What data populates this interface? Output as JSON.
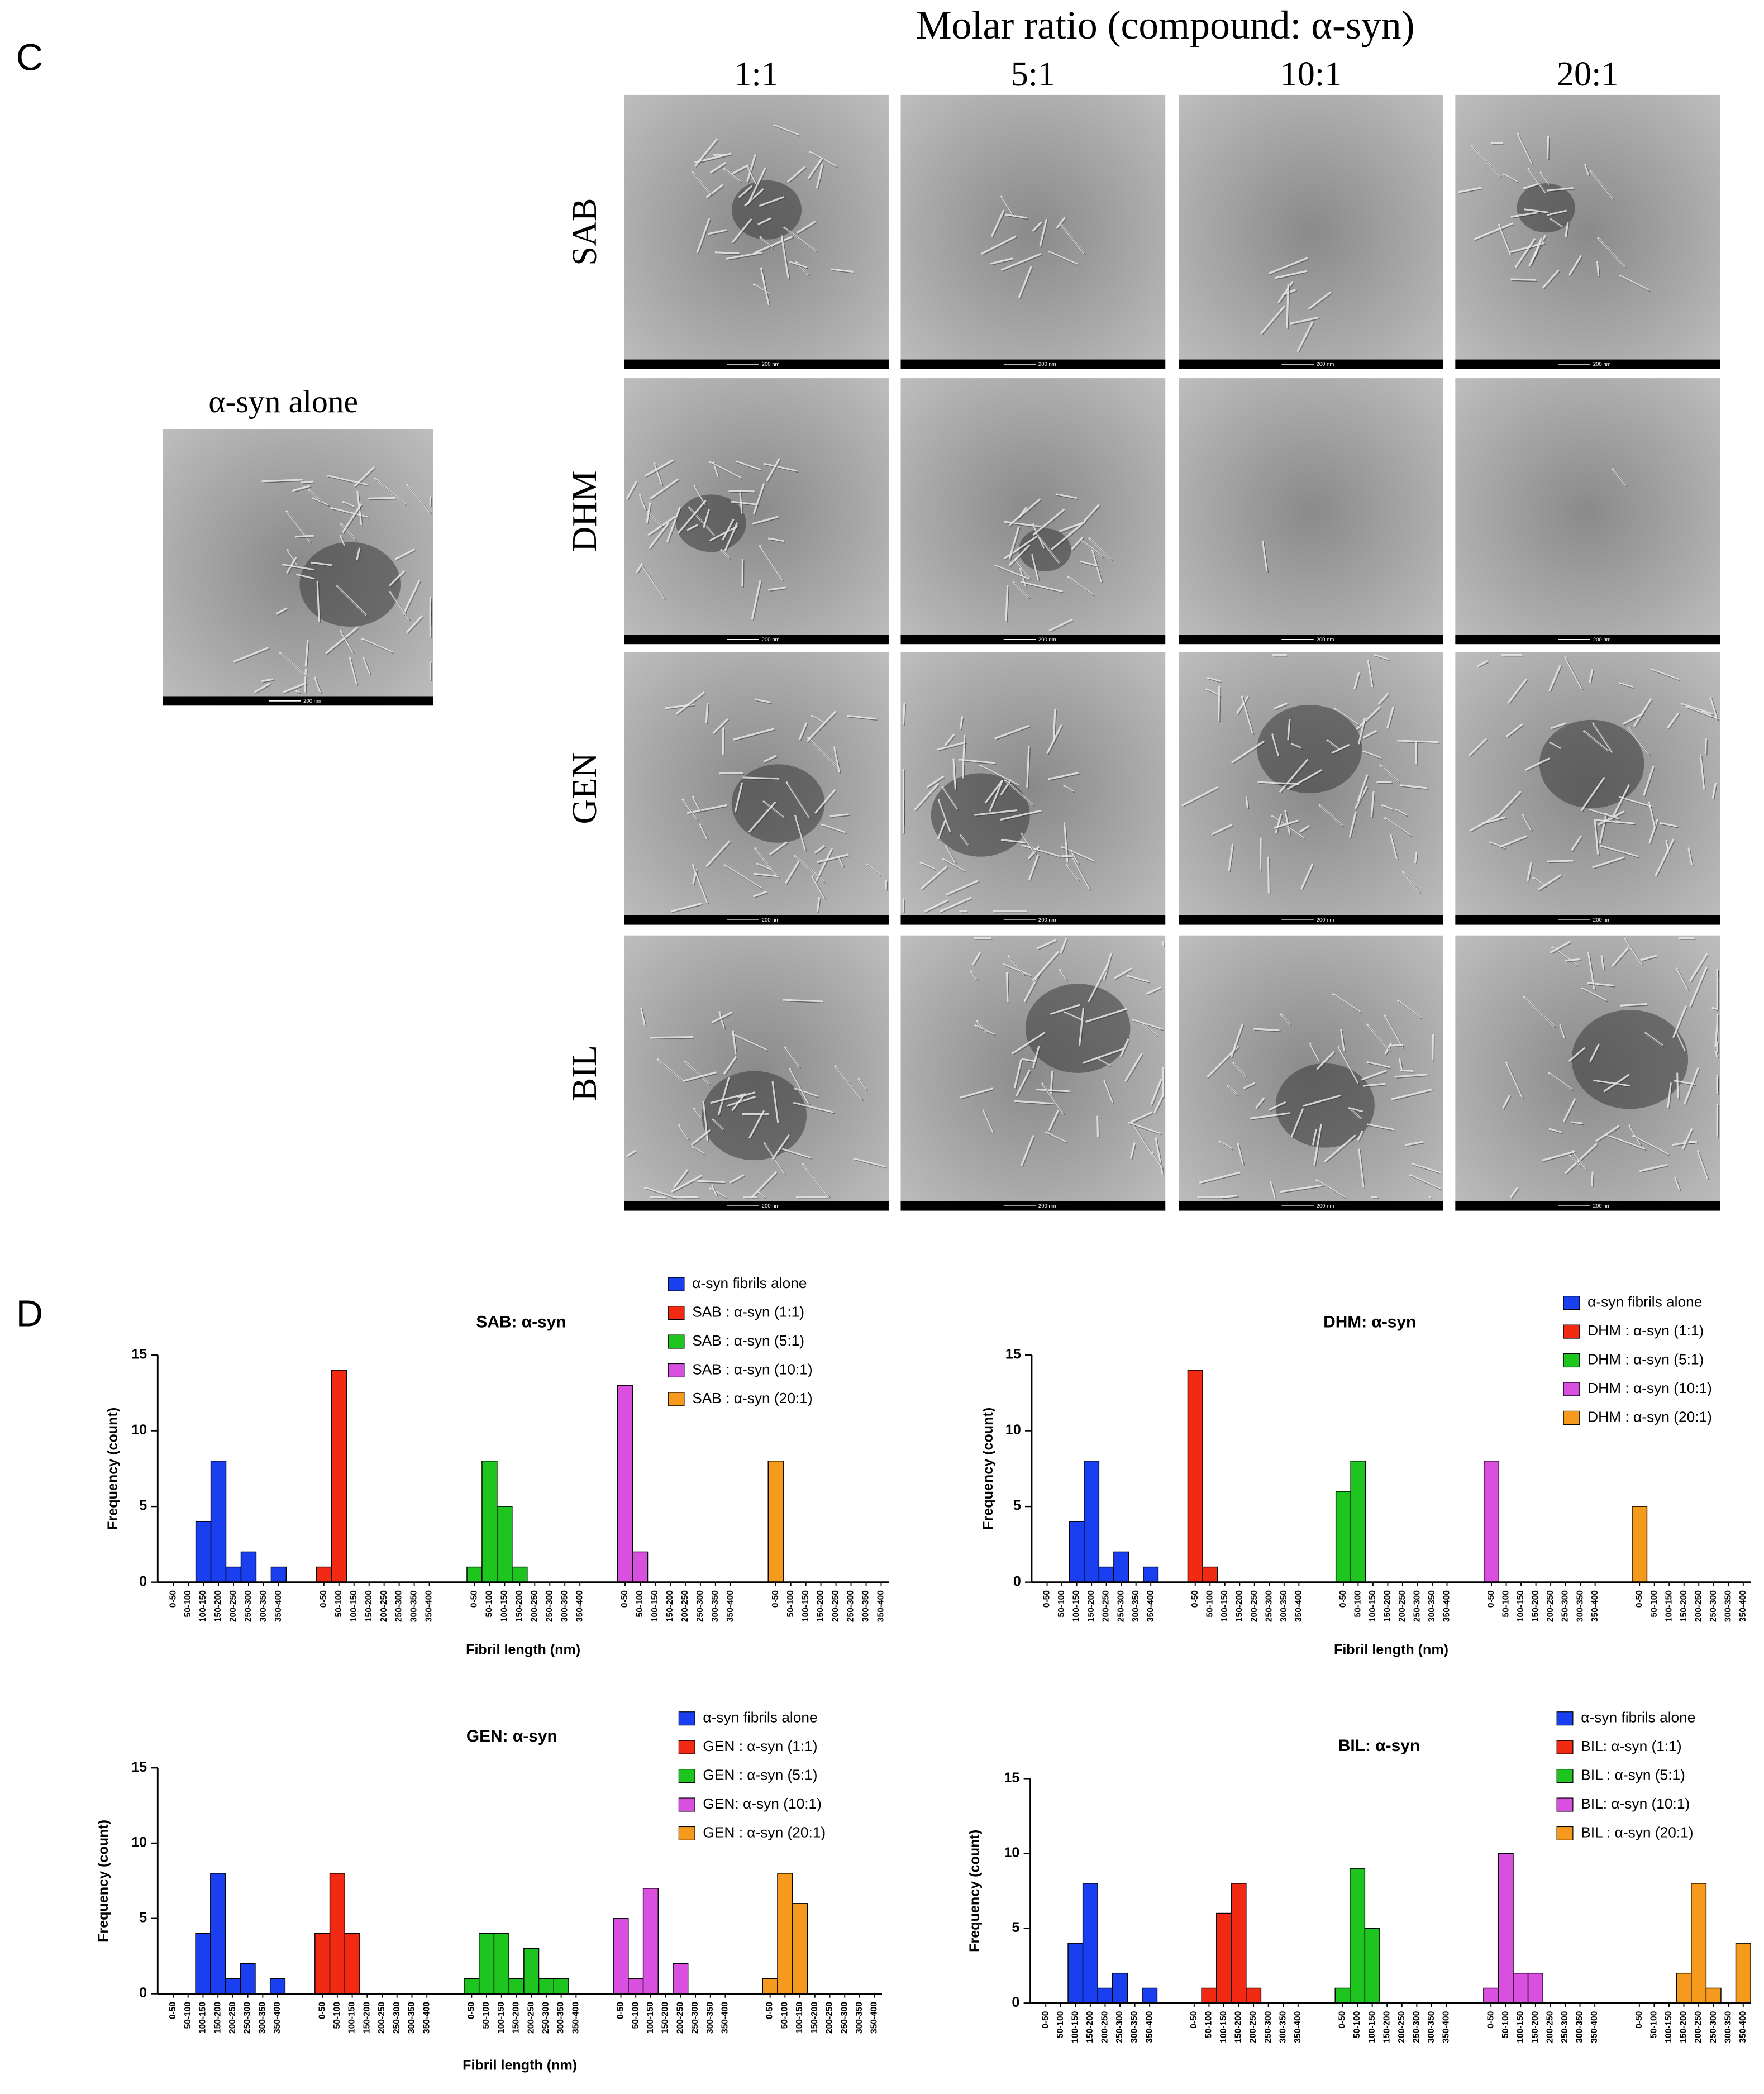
{
  "panel_c": {
    "label": "C",
    "title": "Molar ratio (compound: α-syn)",
    "columns": [
      "1:1",
      "5:1",
      "10:1",
      "20:1"
    ],
    "rows": [
      "SAB",
      "DHM",
      "GEN",
      "BIL"
    ],
    "control_title": "α-syn alone",
    "scale_bar": "200 nm"
  },
  "panel_d_label": "D",
  "chart_data": [
    {
      "type": "bar",
      "title": "SAB: α-syn",
      "xlabel": "Fibril length (nm)",
      "ylabel": "Frequency (count)",
      "categories": [
        "0-50",
        "50-100",
        "100-150",
        "150-200",
        "200-250",
        "250-300",
        "300-350",
        "350-400"
      ],
      "ylim": [
        0,
        15
      ],
      "yticks": [
        0,
        5,
        10,
        15
      ],
      "series": [
        {
          "name": "α-syn fibrils alone",
          "color": "#1a3ff0",
          "values": [
            0,
            0,
            4,
            8,
            1,
            2,
            0,
            1
          ]
        },
        {
          "name": "SAB : α-syn (1:1)",
          "color": "#f22a14",
          "values": [
            1,
            14,
            0,
            0,
            0,
            0,
            0,
            0
          ]
        },
        {
          "name": "SAB : α-syn (5:1)",
          "color": "#1ec51e",
          "values": [
            1,
            8,
            5,
            1,
            0,
            0,
            0,
            0
          ]
        },
        {
          "name": "SAB : α-syn (10:1)",
          "color": "#d94fe0",
          "values": [
            13,
            2,
            0,
            0,
            0,
            0,
            0,
            0
          ]
        },
        {
          "name": "SAB : α-syn (20:1)",
          "color": "#f59a1c",
          "values": [
            8,
            0,
            0,
            0,
            0,
            0,
            0,
            0
          ]
        }
      ]
    },
    {
      "type": "bar",
      "title": "DHM: α-syn",
      "xlabel": "Fibril length (nm)",
      "ylabel": "Frequency (count)",
      "categories": [
        "0-50",
        "50-100",
        "100-150",
        "150-200",
        "200-250",
        "250-300",
        "300-350",
        "350-400"
      ],
      "ylim": [
        0,
        15
      ],
      "yticks": [
        0,
        5,
        10,
        15
      ],
      "series": [
        {
          "name": "α-syn fibrils alone",
          "color": "#1a3ff0",
          "values": [
            0,
            0,
            4,
            8,
            1,
            2,
            0,
            1
          ]
        },
        {
          "name": "DHM : α-syn (1:1)",
          "color": "#f22a14",
          "values": [
            14,
            1,
            0,
            0,
            0,
            0,
            0,
            0
          ]
        },
        {
          "name": "DHM : α-syn (5:1)",
          "color": "#1ec51e",
          "values": [
            6,
            8,
            0,
            0,
            0,
            0,
            0,
            0
          ]
        },
        {
          "name": "DHM : α-syn (10:1)",
          "color": "#d94fe0",
          "values": [
            8,
            0,
            0,
            0,
            0,
            0,
            0,
            0
          ]
        },
        {
          "name": "DHM : α-syn (20:1)",
          "color": "#f59a1c",
          "values": [
            5,
            0,
            0,
            0,
            0,
            0,
            0,
            0
          ]
        }
      ]
    },
    {
      "type": "bar",
      "title": "GEN: α-syn",
      "xlabel": "Fibril length (nm)",
      "ylabel": "Frequency (count)",
      "categories": [
        "0-50",
        "50-100",
        "100-150",
        "150-200",
        "200-250",
        "250-300",
        "300-350",
        "350-400"
      ],
      "ylim": [
        0,
        15
      ],
      "yticks": [
        0,
        5,
        10,
        15
      ],
      "series": [
        {
          "name": "α-syn fibrils alone",
          "color": "#1a3ff0",
          "values": [
            0,
            0,
            4,
            8,
            1,
            2,
            0,
            1
          ]
        },
        {
          "name": "GEN : α-syn (1:1)",
          "color": "#f22a14",
          "values": [
            4,
            8,
            4,
            0,
            0,
            0,
            0,
            0
          ]
        },
        {
          "name": "GEN : α-syn (5:1)",
          "color": "#1ec51e",
          "values": [
            1,
            4,
            4,
            1,
            3,
            1,
            1,
            0
          ]
        },
        {
          "name": "GEN: α-syn (10:1)",
          "color": "#d94fe0",
          "values": [
            5,
            1,
            7,
            0,
            2,
            0,
            0,
            0
          ]
        },
        {
          "name": "GEN : α-syn (20:1)",
          "color": "#f59a1c",
          "values": [
            1,
            8,
            6,
            0,
            0,
            0,
            0,
            0
          ]
        }
      ]
    },
    {
      "type": "bar",
      "title": "BIL: α-syn",
      "xlabel": "Fibril length (nm)",
      "ylabel": "Frequency (count)",
      "categories": [
        "0-50",
        "50-100",
        "100-150",
        "150-200",
        "200-250",
        "250-300",
        "300-350",
        "350-400"
      ],
      "ylim": [
        0,
        15
      ],
      "yticks": [
        0,
        5,
        10,
        15
      ],
      "series": [
        {
          "name": "α-syn fibrils alone",
          "color": "#1a3ff0",
          "values": [
            0,
            0,
            4,
            8,
            1,
            2,
            0,
            1
          ]
        },
        {
          "name": "BIL: α-syn (1:1)",
          "color": "#f22a14",
          "values": [
            0,
            1,
            6,
            8,
            1,
            0,
            0,
            0
          ]
        },
        {
          "name": "BIL : α-syn (5:1)",
          "color": "#1ec51e",
          "values": [
            1,
            9,
            5,
            0,
            0,
            0,
            0,
            0
          ]
        },
        {
          "name": "BIL: α-syn (10:1)",
          "color": "#d94fe0",
          "values": [
            1,
            10,
            2,
            2,
            0,
            0,
            0,
            0
          ]
        },
        {
          "name": "BIL : α-syn (20:1)",
          "color": "#f59a1c",
          "values": [
            0,
            0,
            0,
            2,
            8,
            1,
            0,
            4
          ]
        }
      ]
    }
  ]
}
